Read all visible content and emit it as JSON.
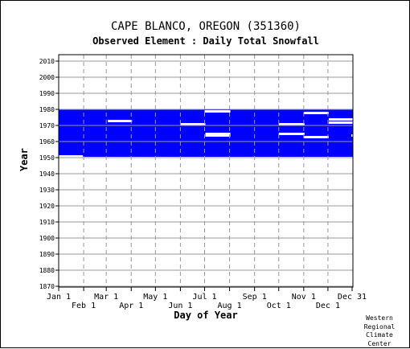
{
  "header": {
    "title": "CAPE BLANCO, OREGON   (351360)",
    "subtitle": "Observed Element : Daily Total Snowfall"
  },
  "credit": [
    "Western",
    "Regional",
    "Climate",
    "Center"
  ],
  "chart_data": {
    "type": "heatmap",
    "title": "CAPE BLANCO, OREGON   (351360)",
    "subtitle": "Observed Element : Daily Total Snowfall",
    "xlabel": "Day of Year",
    "ylabel": "Year",
    "xlim": [
      1,
      365
    ],
    "ylim": [
      1870,
      2012
    ],
    "grid": true,
    "colors": {
      "data": "#0000ff",
      "background": "#ffffff",
      "grid": "#999999"
    },
    "y_ticks": [
      2010,
      2000,
      1990,
      1980,
      1970,
      1960,
      1950,
      1940,
      1930,
      1920,
      1910,
      1900,
      1890,
      1880,
      1870
    ],
    "x_ticks_top_row": [
      {
        "label": "Jan 1",
        "day": 1
      },
      {
        "label": "Mar 1",
        "day": 60
      },
      {
        "label": "May 1",
        "day": 121
      },
      {
        "label": "Jul 1",
        "day": 182
      },
      {
        "label": "Sep 1",
        "day": 244
      },
      {
        "label": "Nov 1",
        "day": 305
      },
      {
        "label": "Dec 31",
        "day": 365
      }
    ],
    "x_ticks_bottom_row": [
      {
        "label": "Feb 1",
        "day": 32
      },
      {
        "label": "Apr 1",
        "day": 91
      },
      {
        "label": "Jun 1",
        "day": 152
      },
      {
        "label": "Aug 1",
        "day": 213
      },
      {
        "label": "Oct 1",
        "day": 274
      },
      {
        "label": "Dec 1",
        "day": 335
      }
    ],
    "data_block": {
      "start_day": 1,
      "end_day": 365,
      "start_year": 1951,
      "end_year": 1979
    },
    "missing_segments": [
      {
        "year": 1951,
        "start_day": 1,
        "end_day": 30
      },
      {
        "year": 1973,
        "start_day": 62,
        "end_day": 91
      },
      {
        "year": 1971,
        "start_day": 152,
        "end_day": 182
      },
      {
        "year": 1979,
        "start_day": 182,
        "end_day": 213
      },
      {
        "year": 1965,
        "start_day": 183,
        "end_day": 213
      },
      {
        "year": 1964,
        "start_day": 183,
        "end_day": 213
      },
      {
        "year": 1971,
        "start_day": 274,
        "end_day": 305
      },
      {
        "year": 1965,
        "start_day": 274,
        "end_day": 305
      },
      {
        "year": 1978,
        "start_day": 305,
        "end_day": 335
      },
      {
        "year": 1963,
        "start_day": 305,
        "end_day": 335
      },
      {
        "year": 1974,
        "start_day": 336,
        "end_day": 365
      },
      {
        "year": 1972,
        "start_day": 336,
        "end_day": 365
      },
      {
        "year": 1964,
        "start_day": 364,
        "end_day": 365
      }
    ]
  }
}
